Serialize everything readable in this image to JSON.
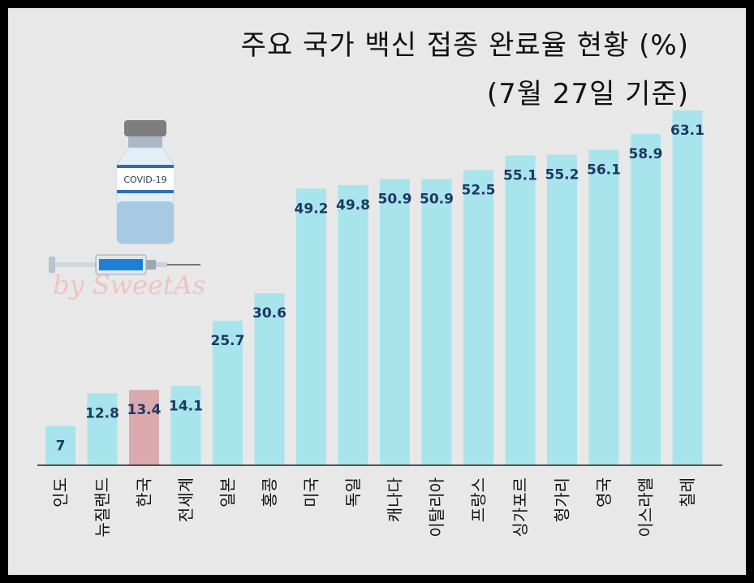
{
  "title": "주요 국가 백신 접종 완료율 현황 (%)",
  "subtitle": "(7월 27일 기준)",
  "vial_label": "COVID-19",
  "watermark": "by SweetAs",
  "colors": {
    "bar": "#a8e4ec",
    "highlight": "#d9a9ad",
    "label": "#1f3864",
    "axis": "#222222",
    "background": "#e8e8e8"
  },
  "chart_data": {
    "type": "bar",
    "title": "주요 국가 백신 접종 완료율 현황 (%)",
    "subtitle": "(7월 27일 기준)",
    "categories": [
      "인도",
      "뉴질랜드",
      "한국",
      "전세계",
      "일본",
      "홍콩",
      "미국",
      "독일",
      "캐나다",
      "이탈리아",
      "프랑스",
      "싱가포르",
      "헝가리",
      "영국",
      "이스라엘",
      "칠레"
    ],
    "values": [
      7,
      12.8,
      13.4,
      14.1,
      25.7,
      30.6,
      49.2,
      49.8,
      50.9,
      50.9,
      52.5,
      55.1,
      55.2,
      56.1,
      58.9,
      63.1
    ],
    "highlight_category": "한국",
    "ylim": [
      0,
      63.1
    ],
    "grid": false,
    "legend": "none"
  }
}
